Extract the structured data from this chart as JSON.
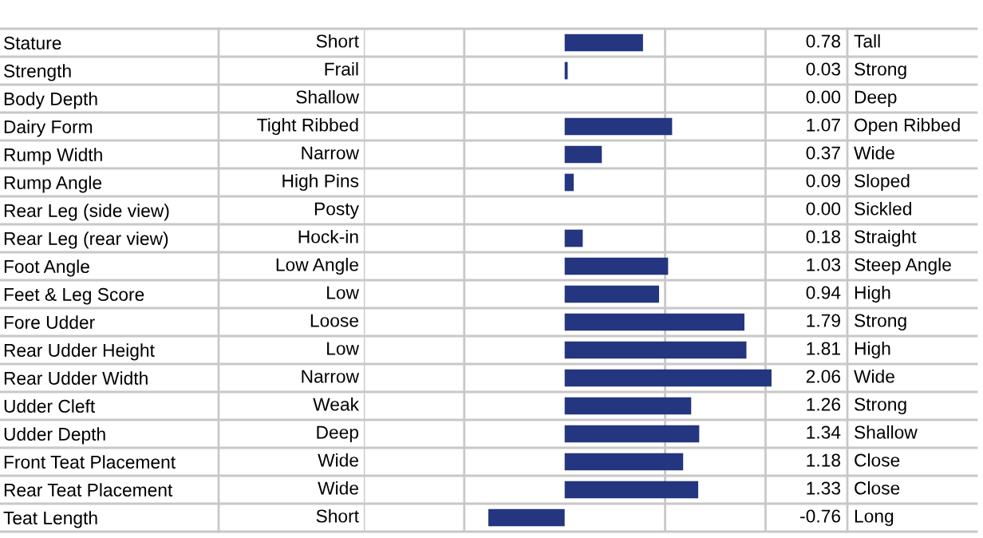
{
  "chart_data": {
    "type": "bar",
    "orientation": "horizontal",
    "categories": [
      "Stature",
      "Strength",
      "Body Depth",
      "Dairy Form",
      "Rump Width",
      "Rump Angle",
      "Rear Leg (side view)",
      "Rear Leg (rear view)",
      "Foot Angle",
      "Feet & Leg Score",
      "Fore Udder",
      "Rear Udder Height",
      "Rear Udder Width",
      "Udder Cleft",
      "Udder Depth",
      "Front Teat Placement",
      "Rear Teat Placement",
      "Teat Length"
    ],
    "values": [
      0.78,
      0.03,
      0.0,
      1.07,
      0.37,
      0.09,
      0.0,
      0.18,
      1.03,
      0.94,
      1.79,
      1.81,
      2.06,
      1.26,
      1.34,
      1.18,
      1.33,
      -0.76
    ],
    "value_labels": [
      "0.78",
      "0.03",
      "0.00",
      "1.07",
      "0.37",
      "0.09",
      "0.00",
      "0.18",
      "1.03",
      "0.94",
      "1.79",
      "1.81",
      "2.06",
      "1.26",
      "1.34",
      "1.18",
      "1.33",
      "-0.76"
    ],
    "color": "#24367f",
    "xlim": [
      -2,
      2.1
    ],
    "xticks": [
      {
        "value": -2,
        "label": null
      },
      {
        "value": -1,
        "label": null
      },
      {
        "value": 1,
        "label": null
      },
      {
        "value": 2,
        "label": null
      }
    ],
    "grid": "x",
    "tick_labels": "y",
    "legend": false,
    "annotations": [
      "Short",
      "Frail",
      "Shallow",
      "Tight Ribbed",
      "Narrow",
      "High Pins",
      "Posty",
      "Hock-in",
      "Low Angle",
      "Low",
      "Loose",
      "Low",
      "Narrow",
      "Weak",
      "Deep",
      "Wide",
      "Wide",
      "Short",
      "Tall",
      "Strong",
      "Deep",
      "Open Ribbed",
      "Wide",
      "Sloped",
      "Sickled",
      "Straight",
      "Steep Angle",
      "High",
      "Strong",
      "High",
      "Wide",
      "Strong",
      "Shallow",
      "Close",
      "Close",
      "Long"
    ]
  }
}
